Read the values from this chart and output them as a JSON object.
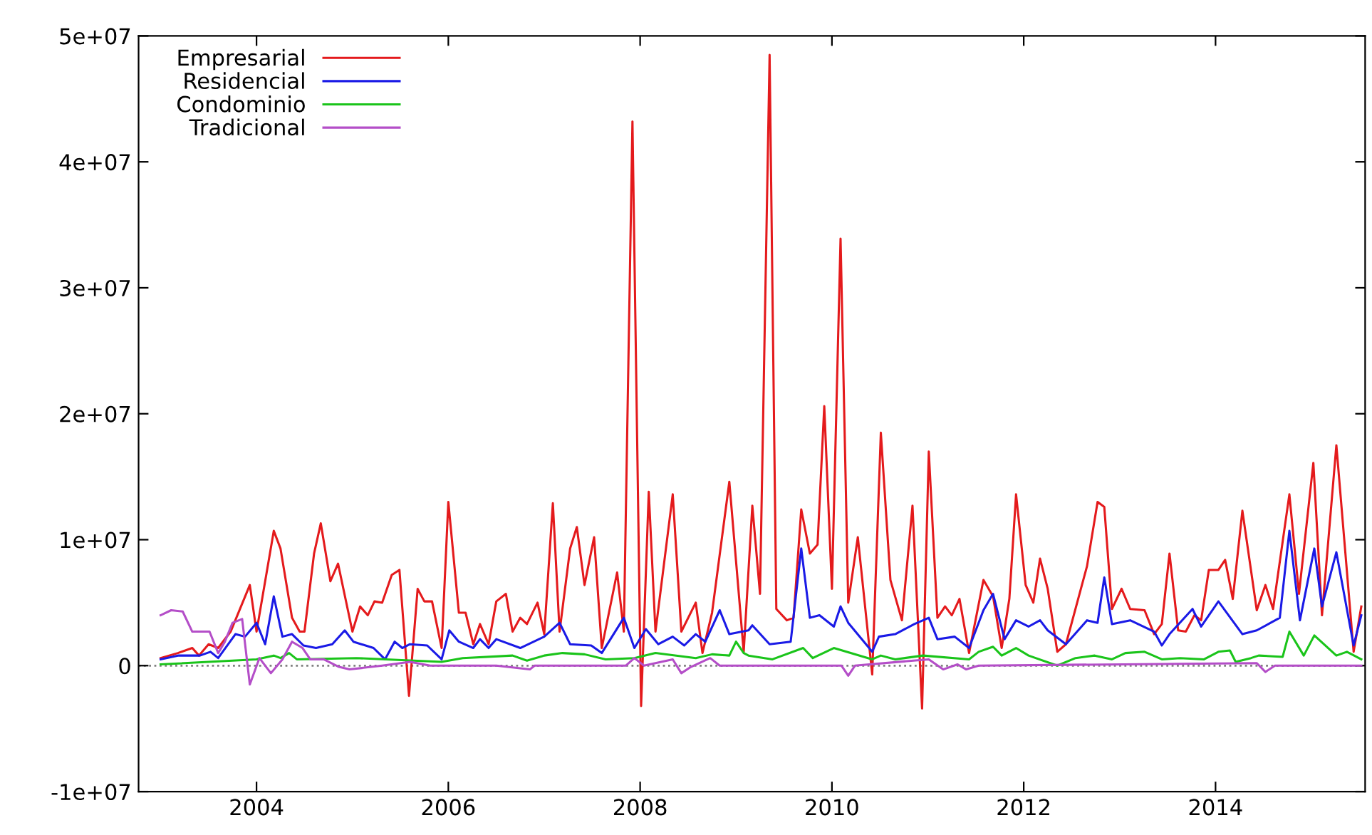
{
  "chart_data": {
    "type": "line",
    "xlim": [
      2002.77,
      2015.56
    ],
    "xticks": [
      2004,
      2006,
      2008,
      2010,
      2012,
      2014
    ],
    "ylim": [
      -10000000,
      50000000
    ],
    "yticks": [
      {
        "value": -10000000,
        "label": "-1e+07"
      },
      0,
      {
        "value": 10000000,
        "label": "1e+07"
      },
      {
        "value": 20000000,
        "label": "2e+07"
      },
      {
        "value": 30000000,
        "label": "3e+07"
      },
      {
        "value": 40000000,
        "label": "4e+07"
      },
      {
        "value": 50000000,
        "label": "5e+07"
      }
    ],
    "grid": false,
    "legend": "top left",
    "line_style": "solid",
    "marker": "none",
    "ref_lines": [
      {
        "axis": "y",
        "value": 0,
        "color": "#808080",
        "line_style": "dotted"
      }
    ],
    "series": [
      {
        "name": "Empresarial",
        "color": "#e41a1c",
        "x": [
          2003.0,
          2003.18,
          2003.33,
          2003.4,
          2003.5,
          2003.6,
          2003.73,
          2003.93,
          2004.0,
          2004.18,
          2004.25,
          2004.37,
          2004.45,
          2004.5,
          2004.6,
          2004.67,
          2004.77,
          2004.85,
          2005.0,
          2005.08,
          2005.16,
          2005.23,
          2005.31,
          2005.41,
          2005.49,
          2005.59,
          2005.68,
          2005.75,
          2005.83,
          2005.93,
          2006.0,
          2006.11,
          2006.18,
          2006.26,
          2006.33,
          2006.42,
          2006.5,
          2006.6,
          2006.67,
          2006.75,
          2006.82,
          2006.93,
          2007.0,
          2007.09,
          2007.16,
          2007.27,
          2007.34,
          2007.42,
          2007.52,
          2007.6,
          2007.76,
          2007.83,
          2007.92,
          2008.01,
          2008.09,
          2008.16,
          2008.34,
          2008.43,
          2008.58,
          2008.65,
          2008.75,
          2008.93,
          2009.08,
          2009.17,
          2009.25,
          2009.35,
          2009.42,
          2009.53,
          2009.6,
          2009.68,
          2009.77,
          2009.85,
          2009.92,
          2010.0,
          2010.09,
          2010.17,
          2010.27,
          2010.42,
          2010.51,
          2010.61,
          2010.73,
          2010.84,
          2010.94,
          2011.01,
          2011.1,
          2011.18,
          2011.25,
          2011.33,
          2011.43,
          2011.58,
          2011.68,
          2011.77,
          2011.85,
          2011.92,
          2012.02,
          2012.1,
          2012.17,
          2012.25,
          2012.35,
          2012.44,
          2012.66,
          2012.77,
          2012.84,
          2012.92,
          2013.02,
          2013.11,
          2013.26,
          2013.36,
          2013.44,
          2013.52,
          2013.61,
          2013.69,
          2013.78,
          2013.85,
          2013.93,
          2014.03,
          2014.1,
          2014.18,
          2014.28,
          2014.43,
          2014.52,
          2014.6,
          2014.77,
          2014.87,
          2015.02,
          2015.11,
          2015.26,
          2015.44,
          2015.52
        ],
        "values": [
          600000,
          1000000,
          1400000,
          800000,
          1700000,
          1400000,
          2700000,
          6400000,
          2700000,
          10700000,
          9300000,
          3800000,
          2700000,
          2700000,
          8900000,
          11300000,
          6700000,
          8100000,
          2700000,
          4700000,
          4000000,
          5100000,
          5000000,
          7200000,
          7600000,
          -2400000,
          6100000,
          5100000,
          5100000,
          1400000,
          13000000,
          4200000,
          4200000,
          1700000,
          3300000,
          1700000,
          5100000,
          5700000,
          2700000,
          3800000,
          3300000,
          5000000,
          2500000,
          12900000,
          2700000,
          9300000,
          11000000,
          6400000,
          10200000,
          1400000,
          7400000,
          2700000,
          43200000,
          -3200000,
          13800000,
          2700000,
          13600000,
          2700000,
          5000000,
          1000000,
          4200000,
          14600000,
          1100000,
          12700000,
          5700000,
          48500000,
          4500000,
          3600000,
          3800000,
          12400000,
          8900000,
          9600000,
          20600000,
          6100000,
          33900000,
          5000000,
          10200000,
          -700000,
          18500000,
          6800000,
          3600000,
          12700000,
          -3400000,
          17000000,
          3800000,
          4700000,
          4000000,
          5300000,
          1000000,
          6800000,
          5500000,
          1400000,
          5300000,
          13600000,
          6400000,
          5000000,
          8500000,
          6100000,
          1100000,
          1700000,
          7900000,
          13000000,
          12600000,
          4500000,
          6100000,
          4500000,
          4400000,
          2500000,
          3300000,
          8900000,
          2800000,
          2700000,
          4000000,
          3600000,
          7600000,
          7600000,
          8400000,
          5300000,
          12300000,
          4400000,
          6400000,
          4500000,
          13600000,
          5700000,
          16100000,
          4000000,
          17500000,
          1100000,
          4700000
        ]
      },
      {
        "name": "Residencial",
        "color": "#1a1ae6",
        "x": [
          2003.0,
          2003.18,
          2003.41,
          2003.52,
          2003.6,
          2003.78,
          2003.88,
          2004.0,
          2004.09,
          2004.18,
          2004.27,
          2004.37,
          2004.49,
          2004.62,
          2004.79,
          2004.92,
          2005.01,
          2005.22,
          2005.34,
          2005.44,
          2005.52,
          2005.6,
          2005.78,
          2005.93,
          2006.01,
          2006.11,
          2006.26,
          2006.33,
          2006.42,
          2006.5,
          2006.75,
          2007.0,
          2007.16,
          2007.27,
          2007.49,
          2007.6,
          2007.83,
          2007.94,
          2008.06,
          2008.19,
          2008.34,
          2008.46,
          2008.58,
          2008.68,
          2008.83,
          2008.93,
          2009.13,
          2009.17,
          2009.35,
          2009.57,
          2009.68,
          2009.77,
          2009.87,
          2010.02,
          2010.09,
          2010.17,
          2010.42,
          2010.49,
          2010.66,
          2010.86,
          2011.01,
          2011.1,
          2011.28,
          2011.43,
          2011.58,
          2011.68,
          2011.8,
          2011.92,
          2012.05,
          2012.17,
          2012.25,
          2012.44,
          2012.66,
          2012.77,
          2012.84,
          2012.92,
          2013.11,
          2013.36,
          2013.44,
          2013.52,
          2013.76,
          2013.85,
          2014.03,
          2014.28,
          2014.43,
          2014.67,
          2014.77,
          2014.88,
          2015.03,
          2015.11,
          2015.26,
          2015.44,
          2015.52
        ],
        "values": [
          500000,
          800000,
          800000,
          1100000,
          600000,
          2500000,
          2300000,
          3400000,
          1700000,
          5500000,
          2300000,
          2500000,
          1600000,
          1400000,
          1700000,
          2800000,
          1900000,
          1400000,
          500000,
          1900000,
          1400000,
          1700000,
          1600000,
          500000,
          2800000,
          1900000,
          1400000,
          2100000,
          1400000,
          2100000,
          1400000,
          2300000,
          3400000,
          1700000,
          1600000,
          1000000,
          3800000,
          1400000,
          2900000,
          1700000,
          2300000,
          1600000,
          2500000,
          1900000,
          4400000,
          2500000,
          2800000,
          3200000,
          1700000,
          1900000,
          9300000,
          3800000,
          4000000,
          3100000,
          4700000,
          3400000,
          1100000,
          2300000,
          2500000,
          3300000,
          3800000,
          2100000,
          2300000,
          1400000,
          4400000,
          5700000,
          2100000,
          3600000,
          3100000,
          3600000,
          2800000,
          1700000,
          3600000,
          3400000,
          7000000,
          3300000,
          3600000,
          2700000,
          1600000,
          2500000,
          4500000,
          3100000,
          5100000,
          2500000,
          2800000,
          3800000,
          10700000,
          3600000,
          9300000,
          4700000,
          9000000,
          1600000,
          4000000
        ]
      },
      {
        "name": "Condominio",
        "color": "#1ac41a",
        "x": [
          2003.0,
          2004.0,
          2004.18,
          2004.25,
          2004.34,
          2004.42,
          2005.04,
          2005.93,
          2006.15,
          2006.67,
          2006.82,
          2007.0,
          2007.19,
          2007.42,
          2007.64,
          2007.94,
          2008.16,
          2008.58,
          2008.75,
          2008.93,
          2009.0,
          2009.08,
          2009.13,
          2009.38,
          2009.7,
          2009.8,
          2010.02,
          2010.42,
          2010.51,
          2010.66,
          2010.95,
          2011.43,
          2011.53,
          2011.68,
          2011.77,
          2011.92,
          2012.05,
          2012.35,
          2012.54,
          2012.74,
          2012.92,
          2013.06,
          2013.26,
          2013.44,
          2013.63,
          2013.88,
          2014.03,
          2014.15,
          2014.21,
          2014.37,
          2014.45,
          2014.7,
          2014.77,
          2014.92,
          2015.03,
          2015.26,
          2015.37,
          2015.52
        ],
        "values": [
          100000,
          500000,
          800000,
          600000,
          1000000,
          500000,
          600000,
          300000,
          600000,
          800000,
          400000,
          800000,
          1000000,
          900000,
          500000,
          600000,
          1000000,
          600000,
          900000,
          800000,
          1900000,
          1000000,
          800000,
          500000,
          1400000,
          600000,
          1400000,
          500000,
          800000,
          500000,
          800000,
          500000,
          1100000,
          1500000,
          800000,
          1400000,
          800000,
          0,
          600000,
          800000,
          500000,
          1000000,
          1100000,
          500000,
          600000,
          500000,
          1100000,
          1200000,
          300000,
          600000,
          800000,
          700000,
          2700000,
          800000,
          2400000,
          800000,
          1100000,
          500000
        ]
      },
      {
        "name": "Tradicional",
        "color": "#b44ec8",
        "x": [
          2003.0,
          2003.11,
          2003.23,
          2003.33,
          2003.51,
          2003.6,
          2003.67,
          2003.75,
          2003.85,
          2003.93,
          2004.03,
          2004.15,
          2004.27,
          2004.37,
          2004.48,
          2004.56,
          2004.7,
          2004.86,
          2004.97,
          2005.31,
          2005.6,
          2005.81,
          2006.5,
          2006.85,
          2006.9,
          2007.85,
          2007.94,
          2008.04,
          2008.34,
          2008.43,
          2008.53,
          2008.73,
          2008.83,
          2010.1,
          2010.17,
          2010.24,
          2011.01,
          2011.16,
          2011.31,
          2011.4,
          2011.53,
          2014.43,
          2014.52,
          2014.62,
          2015.52
        ],
        "values": [
          4000000,
          4400000,
          4300000,
          2700000,
          2700000,
          1000000,
          1900000,
          3400000,
          3700000,
          -1500000,
          600000,
          -600000,
          500000,
          1900000,
          1400000,
          500000,
          500000,
          -100000,
          -300000,
          0,
          300000,
          0,
          0,
          -300000,
          0,
          0,
          600000,
          0,
          500000,
          -600000,
          -100000,
          600000,
          0,
          0,
          -800000,
          0,
          500000,
          -300000,
          100000,
          -300000,
          0,
          200000,
          -500000,
          0,
          0
        ]
      }
    ]
  }
}
